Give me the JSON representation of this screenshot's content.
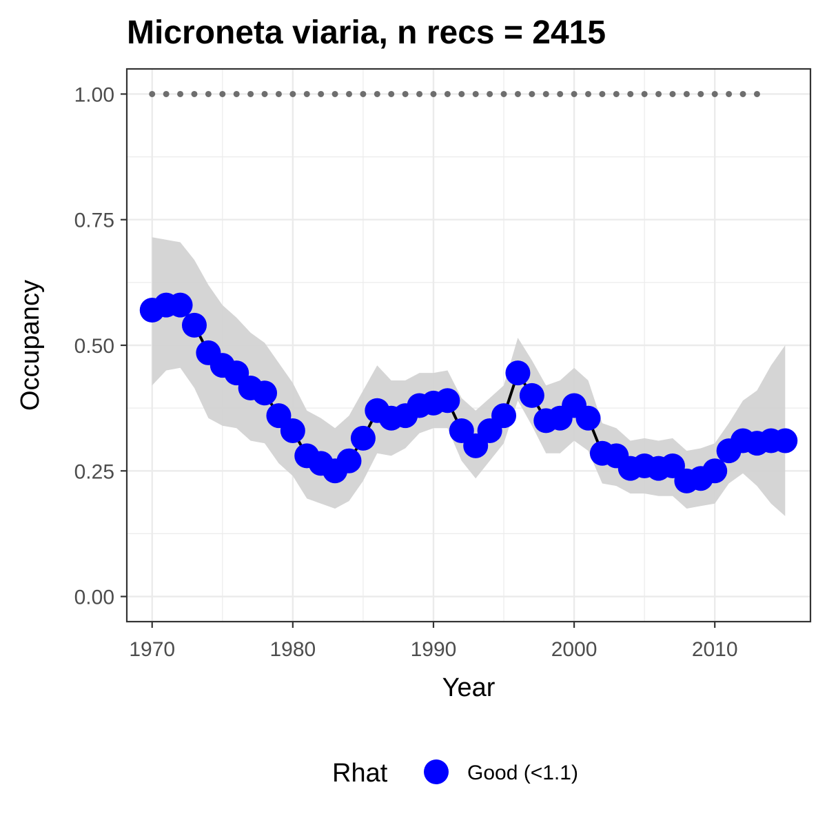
{
  "chart_data": {
    "type": "line",
    "title": "Microneta viaria, n recs = 2415",
    "xlabel": "Year",
    "ylabel": "Occupancy",
    "xlim": [
      1968.2,
      2016.8
    ],
    "ylim": [
      -0.05,
      1.05
    ],
    "x_ticks": [
      1970,
      1980,
      1990,
      2000,
      2010
    ],
    "y_ticks": [
      "0.00",
      "0.25",
      "0.50",
      "0.75",
      "1.00"
    ],
    "grid": true,
    "legend": {
      "title": "Rhat",
      "position": "bottom",
      "entries": [
        {
          "label": "Good (<1.1)",
          "color": "#0000ff"
        }
      ]
    },
    "colors": {
      "points": "#0000ff",
      "line": "#000000",
      "ribbon": "#d3d3d3",
      "reference": "#6e6e6e",
      "grid": "#ebebeb",
      "panel_border": "#333333"
    },
    "series": [
      {
        "name": "Good (<1.1)",
        "x": [
          1970,
          1971,
          1972,
          1973,
          1974,
          1975,
          1976,
          1977,
          1978,
          1979,
          1980,
          1981,
          1982,
          1983,
          1984,
          1985,
          1986,
          1987,
          1988,
          1989,
          1990,
          1991,
          1992,
          1993,
          1994,
          1995,
          1996,
          1997,
          1998,
          1999,
          2000,
          2001,
          2002,
          2003,
          2004,
          2005,
          2006,
          2007,
          2008,
          2009,
          2010,
          2011,
          2012,
          2013,
          2014,
          2015
        ],
        "y": [
          0.57,
          0.58,
          0.58,
          0.54,
          0.485,
          0.46,
          0.445,
          0.415,
          0.405,
          0.36,
          0.33,
          0.28,
          0.265,
          0.25,
          0.27,
          0.315,
          0.37,
          0.355,
          0.36,
          0.38,
          0.385,
          0.39,
          0.33,
          0.3,
          0.33,
          0.36,
          0.445,
          0.4,
          0.35,
          0.355,
          0.38,
          0.355,
          0.285,
          0.28,
          0.255,
          0.26,
          0.255,
          0.26,
          0.23,
          0.235,
          0.25,
          0.29,
          0.31,
          0.305,
          0.31,
          0.31
        ],
        "lower": [
          0.42,
          0.45,
          0.455,
          0.415,
          0.355,
          0.34,
          0.335,
          0.31,
          0.305,
          0.265,
          0.24,
          0.195,
          0.185,
          0.175,
          0.19,
          0.23,
          0.285,
          0.28,
          0.295,
          0.325,
          0.335,
          0.335,
          0.27,
          0.235,
          0.27,
          0.305,
          0.39,
          0.34,
          0.285,
          0.285,
          0.31,
          0.29,
          0.225,
          0.22,
          0.205,
          0.205,
          0.2,
          0.2,
          0.175,
          0.18,
          0.185,
          0.225,
          0.245,
          0.22,
          0.185,
          0.16
        ],
        "upper": [
          0.715,
          0.71,
          0.705,
          0.67,
          0.62,
          0.58,
          0.555,
          0.525,
          0.505,
          0.465,
          0.425,
          0.37,
          0.355,
          0.335,
          0.36,
          0.41,
          0.46,
          0.43,
          0.43,
          0.445,
          0.445,
          0.45,
          0.395,
          0.37,
          0.395,
          0.42,
          0.515,
          0.47,
          0.42,
          0.43,
          0.455,
          0.43,
          0.345,
          0.335,
          0.31,
          0.315,
          0.31,
          0.315,
          0.29,
          0.295,
          0.305,
          0.345,
          0.39,
          0.41,
          0.46,
          0.5
        ]
      }
    ],
    "reference": {
      "x": [
        1970,
        1971,
        1972,
        1973,
        1974,
        1975,
        1976,
        1977,
        1978,
        1979,
        1980,
        1981,
        1982,
        1983,
        1984,
        1985,
        1986,
        1987,
        1988,
        1989,
        1990,
        1991,
        1992,
        1993,
        1994,
        1995,
        1996,
        1997,
        1998,
        1999,
        2000,
        2001,
        2002,
        2003,
        2004,
        2005,
        2006,
        2007,
        2008,
        2009,
        2010,
        2011,
        2012,
        2013
      ],
      "y": 1.0
    }
  }
}
